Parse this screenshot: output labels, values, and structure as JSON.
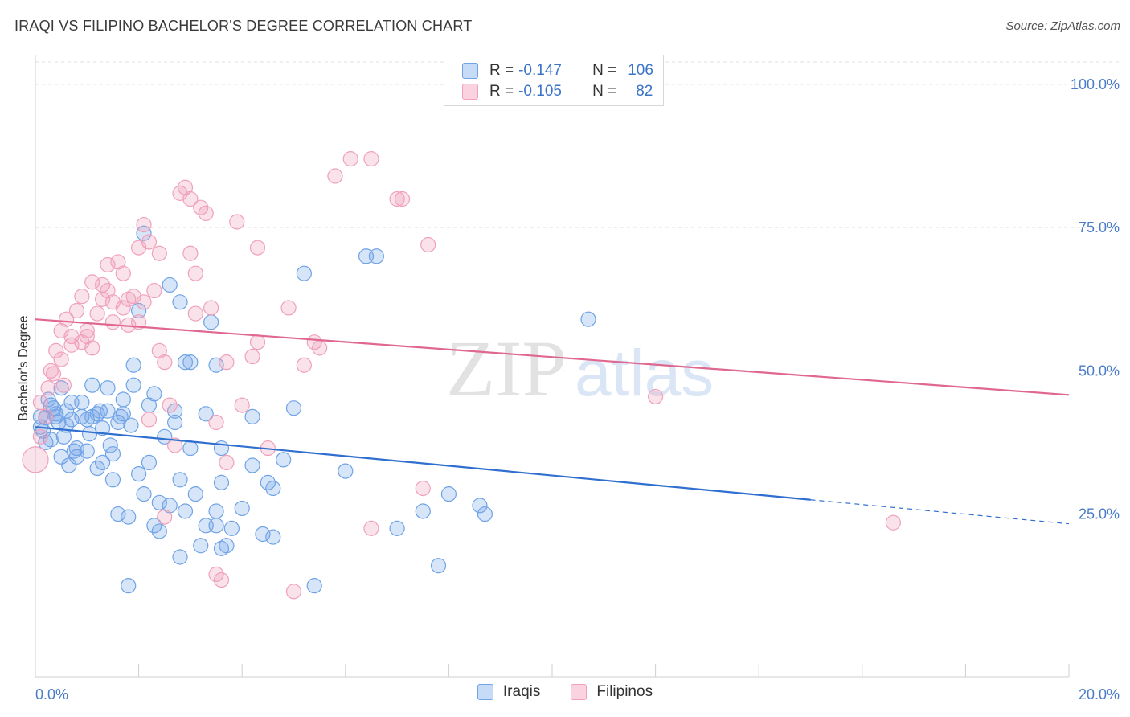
{
  "header": {
    "title": "IRAQI VS FILIPINO BACHELOR'S DEGREE CORRELATION CHART",
    "source": "Source: ZipAtlas.com"
  },
  "watermark": {
    "zip": "ZIP",
    "atlas": "atlas"
  },
  "legend": {
    "rows": [
      {
        "r_key": "R =",
        "r_value": "-0.147",
        "n_key": "N =",
        "n_value": "106",
        "color": "#6fa3e6"
      },
      {
        "r_key": "R =",
        "r_value": "-0.105",
        "n_key": "N =",
        "n_value": "82",
        "color": "#f0a0bb"
      }
    ]
  },
  "bottom_legend": [
    "Iraqis",
    "Filipinos"
  ],
  "chart_data": {
    "type": "scatter",
    "title": "IRAQI VS FILIPINO BACHELOR'S DEGREE CORRELATION CHART",
    "xlabel": "",
    "ylabel": "Bachelor's Degree",
    "xlim": [
      0,
      20
    ],
    "ylim": [
      0,
      100
    ],
    "x_tick_labels": [
      "0.0%",
      "20.0%"
    ],
    "y_tick_labels": [
      "25.0%",
      "50.0%",
      "75.0%",
      "100.0%"
    ],
    "y_ticks": [
      25,
      50,
      75,
      100
    ],
    "grid": true,
    "legend_position": "top-center",
    "series": [
      {
        "name": "Iraqis",
        "color": "#6fa3e6",
        "line_color": "#2f6fcf",
        "trend": {
          "x0": 0,
          "y0": 40.2,
          "x1": 15.0,
          "y1": 27.5,
          "dash_to_x": 20,
          "dash_to_y": 23.3
        },
        "points": [
          [
            0.1,
            40.2
          ],
          [
            0.1,
            42.0
          ],
          [
            0.2,
            41.8
          ],
          [
            0.2,
            37.5
          ],
          [
            0.3,
            44.0
          ],
          [
            0.3,
            38.0
          ],
          [
            0.4,
            42.5
          ],
          [
            0.4,
            42.0
          ],
          [
            0.5,
            47.0
          ],
          [
            0.5,
            35.0
          ],
          [
            0.6,
            40.5
          ],
          [
            0.6,
            43.0
          ],
          [
            0.7,
            41.5
          ],
          [
            0.7,
            44.5
          ],
          [
            0.8,
            36.5
          ],
          [
            0.8,
            35.0
          ],
          [
            0.9,
            42.0
          ],
          [
            0.9,
            44.5
          ],
          [
            1.0,
            41.5
          ],
          [
            1.0,
            36.0
          ],
          [
            1.1,
            47.5
          ],
          [
            1.1,
            42.0
          ],
          [
            1.2,
            42.5
          ],
          [
            1.2,
            33.0
          ],
          [
            1.3,
            40.0
          ],
          [
            1.3,
            34.0
          ],
          [
            1.4,
            47.0
          ],
          [
            1.4,
            43.0
          ],
          [
            1.5,
            31.0
          ],
          [
            1.5,
            35.5
          ],
          [
            1.6,
            41.0
          ],
          [
            1.6,
            25.0
          ],
          [
            1.7,
            45.0
          ],
          [
            1.7,
            42.5
          ],
          [
            1.8,
            24.5
          ],
          [
            1.8,
            12.5
          ],
          [
            1.9,
            51.0
          ],
          [
            1.9,
            47.5
          ],
          [
            2.0,
            32.0
          ],
          [
            2.0,
            60.5
          ],
          [
            2.1,
            74.0
          ],
          [
            2.1,
            28.5
          ],
          [
            2.2,
            44.0
          ],
          [
            2.2,
            34.0
          ],
          [
            2.3,
            23.0
          ],
          [
            2.3,
            46.0
          ],
          [
            2.4,
            27.0
          ],
          [
            2.4,
            22.0
          ],
          [
            2.5,
            38.5
          ],
          [
            2.6,
            26.5
          ],
          [
            2.6,
            65.0
          ],
          [
            2.7,
            41.0
          ],
          [
            2.7,
            43.0
          ],
          [
            2.8,
            31.0
          ],
          [
            2.8,
            17.5
          ],
          [
            2.8,
            62.0
          ],
          [
            2.9,
            51.5
          ],
          [
            2.9,
            25.5
          ],
          [
            3.0,
            36.5
          ],
          [
            3.0,
            51.5
          ],
          [
            3.1,
            28.5
          ],
          [
            3.2,
            19.5
          ],
          [
            3.3,
            23.0
          ],
          [
            3.3,
            42.5
          ],
          [
            3.4,
            58.5
          ],
          [
            3.5,
            23.0
          ],
          [
            3.5,
            51.0
          ],
          [
            3.5,
            25.5
          ],
          [
            3.6,
            36.5
          ],
          [
            3.6,
            30.5
          ],
          [
            3.6,
            19.0
          ],
          [
            3.7,
            19.5
          ],
          [
            3.8,
            22.5
          ],
          [
            4.0,
            26.0
          ],
          [
            4.2,
            42.0
          ],
          [
            4.2,
            33.5
          ],
          [
            4.4,
            21.5
          ],
          [
            4.5,
            30.5
          ],
          [
            4.6,
            29.5
          ],
          [
            4.6,
            21.0
          ],
          [
            4.8,
            34.5
          ],
          [
            5.0,
            43.5
          ],
          [
            5.2,
            67.0
          ],
          [
            5.4,
            12.5
          ],
          [
            6.0,
            32.5
          ],
          [
            6.4,
            70.0
          ],
          [
            6.6,
            70.0
          ],
          [
            7.0,
            22.5
          ],
          [
            7.5,
            25.5
          ],
          [
            7.8,
            16.0
          ],
          [
            8.0,
            28.5
          ],
          [
            8.6,
            26.5
          ],
          [
            8.7,
            25.0
          ],
          [
            10.7,
            59.0
          ],
          [
            0.15,
            39.5
          ],
          [
            0.25,
            45.0
          ],
          [
            0.35,
            43.5
          ],
          [
            0.45,
            41.0
          ],
          [
            0.55,
            38.5
          ],
          [
            0.65,
            33.5
          ],
          [
            0.75,
            36.0
          ],
          [
            1.05,
            39.0
          ],
          [
            1.25,
            43.0
          ],
          [
            1.45,
            37.0
          ],
          [
            1.65,
            42.0
          ],
          [
            1.85,
            40.5
          ]
        ]
      },
      {
        "name": "Filipinos",
        "color": "#f0a0bb",
        "line_color": "#e0678f",
        "trend": {
          "x0": 0,
          "y0": 59.0,
          "x1": 20,
          "y1": 45.8
        },
        "points": [
          [
            0.0,
            34.5
          ],
          [
            0.1,
            38.5
          ],
          [
            0.1,
            44.5
          ],
          [
            0.2,
            42.0
          ],
          [
            0.3,
            50.0
          ],
          [
            0.35,
            49.5
          ],
          [
            0.4,
            53.5
          ],
          [
            0.5,
            57.0
          ],
          [
            0.5,
            52.0
          ],
          [
            0.6,
            59.0
          ],
          [
            0.7,
            54.5
          ],
          [
            0.7,
            56.0
          ],
          [
            0.8,
            60.5
          ],
          [
            0.9,
            55.0
          ],
          [
            0.9,
            63.0
          ],
          [
            1.0,
            57.0
          ],
          [
            1.1,
            65.5
          ],
          [
            1.1,
            54.0
          ],
          [
            1.2,
            60.0
          ],
          [
            1.3,
            62.5
          ],
          [
            1.3,
            65.0
          ],
          [
            1.4,
            64.0
          ],
          [
            1.4,
            68.5
          ],
          [
            1.5,
            62.0
          ],
          [
            1.5,
            58.5
          ],
          [
            1.6,
            69.0
          ],
          [
            1.7,
            61.0
          ],
          [
            1.7,
            67.0
          ],
          [
            1.8,
            58.0
          ],
          [
            1.8,
            62.5
          ],
          [
            1.9,
            63.0
          ],
          [
            2.0,
            58.5
          ],
          [
            2.0,
            71.5
          ],
          [
            2.1,
            75.5
          ],
          [
            2.2,
            72.5
          ],
          [
            2.2,
            41.5
          ],
          [
            2.3,
            64.0
          ],
          [
            2.4,
            70.5
          ],
          [
            2.4,
            53.5
          ],
          [
            2.5,
            51.5
          ],
          [
            2.5,
            24.5
          ],
          [
            2.6,
            44.0
          ],
          [
            2.7,
            37.0
          ],
          [
            2.8,
            81.0
          ],
          [
            2.9,
            82.0
          ],
          [
            3.0,
            80.0
          ],
          [
            3.0,
            70.5
          ],
          [
            3.1,
            60.0
          ],
          [
            3.1,
            67.0
          ],
          [
            3.2,
            78.5
          ],
          [
            3.3,
            77.5
          ],
          [
            3.4,
            61.0
          ],
          [
            3.5,
            14.5
          ],
          [
            3.5,
            41.0
          ],
          [
            3.6,
            13.5
          ],
          [
            3.7,
            34.0
          ],
          [
            3.7,
            51.5
          ],
          [
            3.9,
            76.0
          ],
          [
            4.0,
            44.0
          ],
          [
            4.2,
            52.5
          ],
          [
            4.3,
            71.5
          ],
          [
            4.3,
            55.0
          ],
          [
            4.5,
            36.5
          ],
          [
            4.9,
            61.0
          ],
          [
            5.0,
            11.5
          ],
          [
            5.2,
            51.0
          ],
          [
            5.4,
            55.0
          ],
          [
            5.5,
            54.0
          ],
          [
            5.8,
            84.0
          ],
          [
            6.1,
            87.0
          ],
          [
            6.5,
            87.0
          ],
          [
            6.5,
            22.5
          ],
          [
            7.0,
            80.0
          ],
          [
            7.1,
            80.0
          ],
          [
            7.5,
            29.5
          ],
          [
            7.6,
            72.0
          ],
          [
            12.0,
            45.5
          ],
          [
            16.6,
            23.5
          ],
          [
            0.25,
            47.0
          ],
          [
            0.55,
            47.5
          ],
          [
            1.0,
            56.0
          ],
          [
            2.1,
            62.0
          ]
        ]
      }
    ]
  }
}
